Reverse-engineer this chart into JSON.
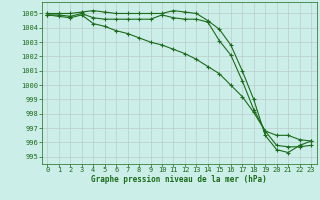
{
  "title": "Graphe pression niveau de la mer (hPa)",
  "bg_color": "#cceee8",
  "grid_color": "#bbcccc",
  "line_color": "#1a6b1a",
  "xlim": [
    -0.5,
    23.5
  ],
  "ylim": [
    994.5,
    1005.8
  ],
  "yticks": [
    995,
    996,
    997,
    998,
    999,
    1000,
    1001,
    1002,
    1003,
    1004,
    1005
  ],
  "xticks": [
    0,
    1,
    2,
    3,
    4,
    5,
    6,
    7,
    8,
    9,
    10,
    11,
    12,
    13,
    14,
    15,
    16,
    17,
    18,
    19,
    20,
    21,
    22,
    23
  ],
  "series1": [
    1005.0,
    1005.0,
    1005.0,
    1005.1,
    1005.2,
    1005.1,
    1005.0,
    1005.0,
    1005.0,
    1005.0,
    1005.0,
    1005.2,
    1005.1,
    1005.0,
    1004.5,
    1003.9,
    1002.8,
    1001.0,
    999.0,
    996.5,
    995.5,
    995.3,
    995.8,
    996.1
  ],
  "series2": [
    1004.9,
    1004.9,
    1004.8,
    1005.0,
    1004.7,
    1004.6,
    1004.6,
    1004.6,
    1004.6,
    1004.6,
    1004.9,
    1004.7,
    1004.6,
    1004.6,
    1004.4,
    1003.1,
    1002.1,
    1000.3,
    998.3,
    996.8,
    996.5,
    996.5,
    996.2,
    996.1
  ],
  "series3": [
    1004.9,
    1004.8,
    1004.7,
    1004.9,
    1004.3,
    1004.1,
    1003.8,
    1003.6,
    1003.3,
    1003.0,
    1002.8,
    1002.5,
    1002.2,
    1001.8,
    1001.3,
    1000.8,
    1000.0,
    999.2,
    998.1,
    996.8,
    995.8,
    995.7,
    995.7,
    995.8
  ]
}
